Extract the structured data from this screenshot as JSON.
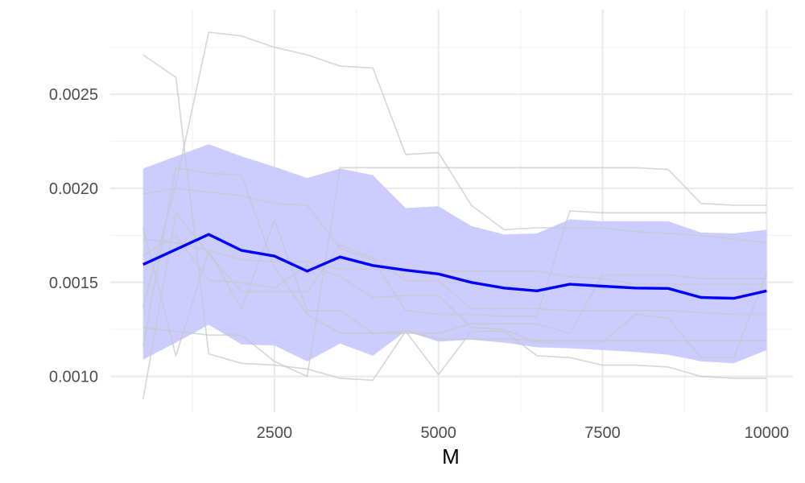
{
  "chart_data": {
    "type": "line",
    "title": "",
    "xlabel": "M",
    "ylabel": "",
    "xlim": [
      0,
      10400
    ],
    "ylim": [
      0.00081,
      0.00295
    ],
    "x_ticks": [
      2500,
      5000,
      7500,
      10000
    ],
    "x_tick_labels": [
      "2500",
      "5000",
      "7500",
      "10000"
    ],
    "y_ticks": [
      0.001,
      0.0015,
      0.002,
      0.0025
    ],
    "y_tick_labels": [
      "0.0010",
      "0.0015",
      "0.0020",
      "0.0025"
    ],
    "grid": true,
    "x": [
      500,
      1000,
      1500,
      2000,
      2500,
      3000,
      3500,
      4000,
      4500,
      5000,
      5500,
      6000,
      6500,
      7000,
      7500,
      8000,
      8500,
      9000,
      9500,
      10000
    ],
    "mean": {
      "color": "#0000ff",
      "values": [
        0.001595,
        0.001675,
        0.001755,
        0.00167,
        0.00164,
        0.00156,
        0.001635,
        0.00159,
        0.001565,
        0.001545,
        0.0015,
        0.00147,
        0.001455,
        0.00149,
        0.00148,
        0.00147,
        0.001468,
        0.00142,
        0.001415,
        0.001455
      ]
    },
    "band": {
      "color": "#ccccff",
      "upper": [
        0.002105,
        0.00217,
        0.002235,
        0.00217,
        0.002115,
        0.002055,
        0.002105,
        0.00207,
        0.001895,
        0.001905,
        0.0018,
        0.001755,
        0.00176,
        0.001835,
        0.001825,
        0.001825,
        0.001825,
        0.001765,
        0.00176,
        0.00178
      ],
      "lower": [
        0.00109,
        0.00118,
        0.001275,
        0.00117,
        0.001165,
        0.00108,
        0.001175,
        0.00111,
        0.00124,
        0.001185,
        0.001195,
        0.00118,
        0.001155,
        0.00115,
        0.00114,
        0.00113,
        0.001115,
        0.00108,
        0.00107,
        0.00114
      ]
    },
    "series_color": "#c8c8c8",
    "series": [
      {
        "values": [
          0.00271,
          0.00259,
          0.00112,
          0.00107,
          0.00106,
          0.00104,
          0.00099,
          0.00098,
          0.00124,
          0.00101,
          0.00124,
          0.00124,
          0.00111,
          0.0011,
          0.00106,
          0.00106,
          0.00105,
          0.001,
          0.00099,
          0.00099
        ]
      },
      {
        "values": [
          0.00088,
          0.00187,
          0.00165,
          0.00145,
          0.00145,
          0.00145,
          0.0017,
          0.00163,
          0.00151,
          0.00151,
          0.00136,
          0.00136,
          0.00136,
          0.00135,
          0.00135,
          0.00135,
          0.00135,
          0.00134,
          0.00133,
          0.00133
        ]
      },
      {
        "values": [
          0.00137,
          0.00202,
          0.00283,
          0.00281,
          0.00275,
          0.00271,
          0.00265,
          0.00264,
          0.00218,
          0.00219,
          0.00191,
          0.00178,
          0.00179,
          0.00179,
          0.00179,
          0.00177,
          0.00176,
          0.00175,
          0.00173,
          0.00171
        ]
      },
      {
        "values": [
          0.00126,
          0.00124,
          0.00122,
          0.00122,
          0.00108,
          0.001,
          0.00211,
          0.00211,
          0.00211,
          0.00211,
          0.00211,
          0.00211,
          0.00211,
          0.00211,
          0.00211,
          0.00211,
          0.0021,
          0.00192,
          0.00191,
          0.00191
        ]
      },
      {
        "values": [
          0.00197,
          0.002,
          0.00198,
          0.00196,
          0.00192,
          0.00191,
          0.00168,
          0.00162,
          0.00135,
          0.00133,
          0.00133,
          0.00132,
          0.00132,
          0.00188,
          0.00187,
          0.00187,
          0.00187,
          0.00187,
          0.00187,
          0.00187
        ]
      },
      {
        "values": [
          0.00179,
          0.00111,
          0.00167,
          0.00136,
          0.00183,
          0.00135,
          0.00135,
          0.00123,
          0.00124,
          0.0012,
          0.0012,
          0.0012,
          0.00119,
          0.00119,
          0.00119,
          0.00119,
          0.00119,
          0.00119,
          0.00119,
          0.00119
        ]
      },
      {
        "values": [
          0.00173,
          0.00171,
          0.00167,
          0.00162,
          0.00161,
          0.00161,
          0.00157,
          0.00157,
          0.00156,
          0.00156,
          0.00156,
          0.00156,
          0.00156,
          0.00153,
          0.00152,
          0.00149,
          0.00149,
          0.00149,
          0.00149,
          0.00149
        ]
      },
      {
        "values": [
          0.00116,
          0.00211,
          0.00208,
          0.00207,
          0.00158,
          0.00133,
          0.00123,
          0.00123,
          0.00123,
          0.00123,
          0.00128,
          0.00128,
          0.00128,
          0.00123,
          0.00154,
          0.00154,
          0.00154,
          0.00152,
          0.00152,
          0.00152
        ]
      },
      {
        "values": [
          0.00164,
          0.00175,
          0.00151,
          0.0015,
          0.00147,
          0.00159,
          0.00153,
          0.00142,
          0.00143,
          0.00143,
          0.00126,
          0.00125,
          0.00118,
          0.00118,
          0.00118,
          0.00133,
          0.00131,
          0.0011,
          0.0011,
          0.00155
        ]
      }
    ]
  }
}
